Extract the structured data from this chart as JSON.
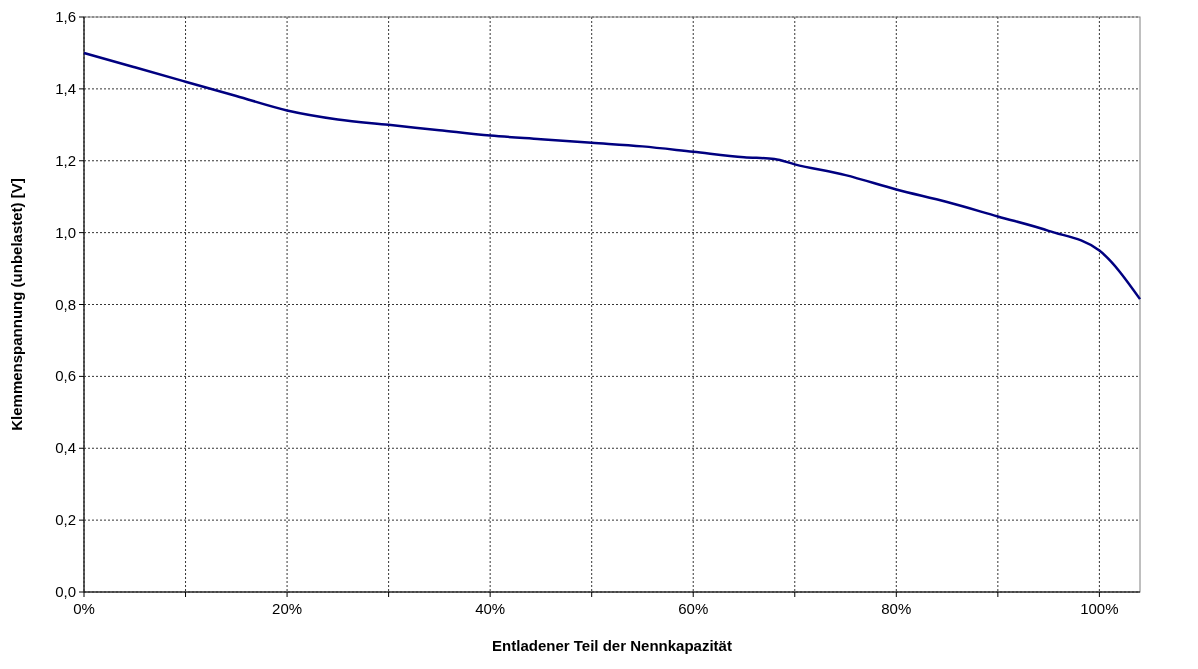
{
  "chart_data": {
    "type": "line",
    "xlabel": "Entladener Teil der Nennkapazität",
    "ylabel": "Klemmenspannung (unbelastet) [V]",
    "x": [
      0,
      5,
      10,
      15,
      20,
      25,
      30,
      35,
      40,
      45,
      50,
      55,
      60,
      65,
      68,
      70,
      75,
      80,
      85,
      90,
      95,
      100,
      104
    ],
    "series": [
      {
        "color": "#000080",
        "values": [
          1.5,
          1.46,
          1.42,
          1.38,
          1.34,
          1.315,
          1.3,
          1.285,
          1.27,
          1.26,
          1.25,
          1.24,
          1.225,
          1.21,
          1.205,
          1.19,
          1.16,
          1.12,
          1.085,
          1.045,
          1.005,
          0.95,
          0.815
        ]
      }
    ],
    "xlim": [
      0,
      104
    ],
    "xticks": [
      {
        "value": 0,
        "label": "0%"
      },
      {
        "value": 10,
        "label": null
      },
      {
        "value": 20,
        "label": "20%"
      },
      {
        "value": 30,
        "label": null
      },
      {
        "value": 40,
        "label": "40%"
      },
      {
        "value": 50,
        "label": null
      },
      {
        "value": 60,
        "label": "60%"
      },
      {
        "value": 70,
        "label": null
      },
      {
        "value": 80,
        "label": "80%"
      },
      {
        "value": 90,
        "label": null
      },
      {
        "value": 100,
        "label": "100%"
      }
    ],
    "ylim": [
      0,
      1.6
    ],
    "yticks": [
      {
        "value": 0,
        "label": "0,0"
      },
      {
        "value": 0.2,
        "label": "0,2"
      },
      {
        "value": 0.4,
        "label": "0,4"
      },
      {
        "value": 0.6,
        "label": "0,6"
      },
      {
        "value": 0.8,
        "label": "0,8"
      },
      {
        "value": 1.0,
        "label": "1,0"
      },
      {
        "value": 1.2,
        "label": "1,2"
      },
      {
        "value": 1.4,
        "label": "1,4"
      },
      {
        "value": 1.6,
        "label": "1,6"
      }
    ],
    "grid": true,
    "marker": "none",
    "line_style": "solid"
  }
}
